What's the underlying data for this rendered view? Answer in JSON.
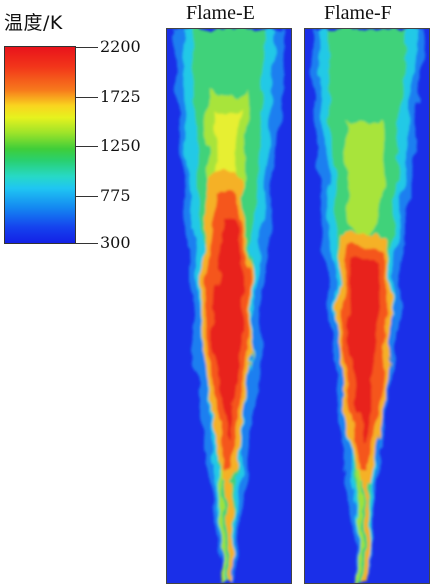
{
  "legend": {
    "title": "温度/K",
    "ticks": [
      "2200",
      "1725",
      "1250",
      "775",
      "300"
    ]
  },
  "panels": [
    {
      "title": "Flame-E"
    },
    {
      "title": "Flame-F"
    }
  ]
}
